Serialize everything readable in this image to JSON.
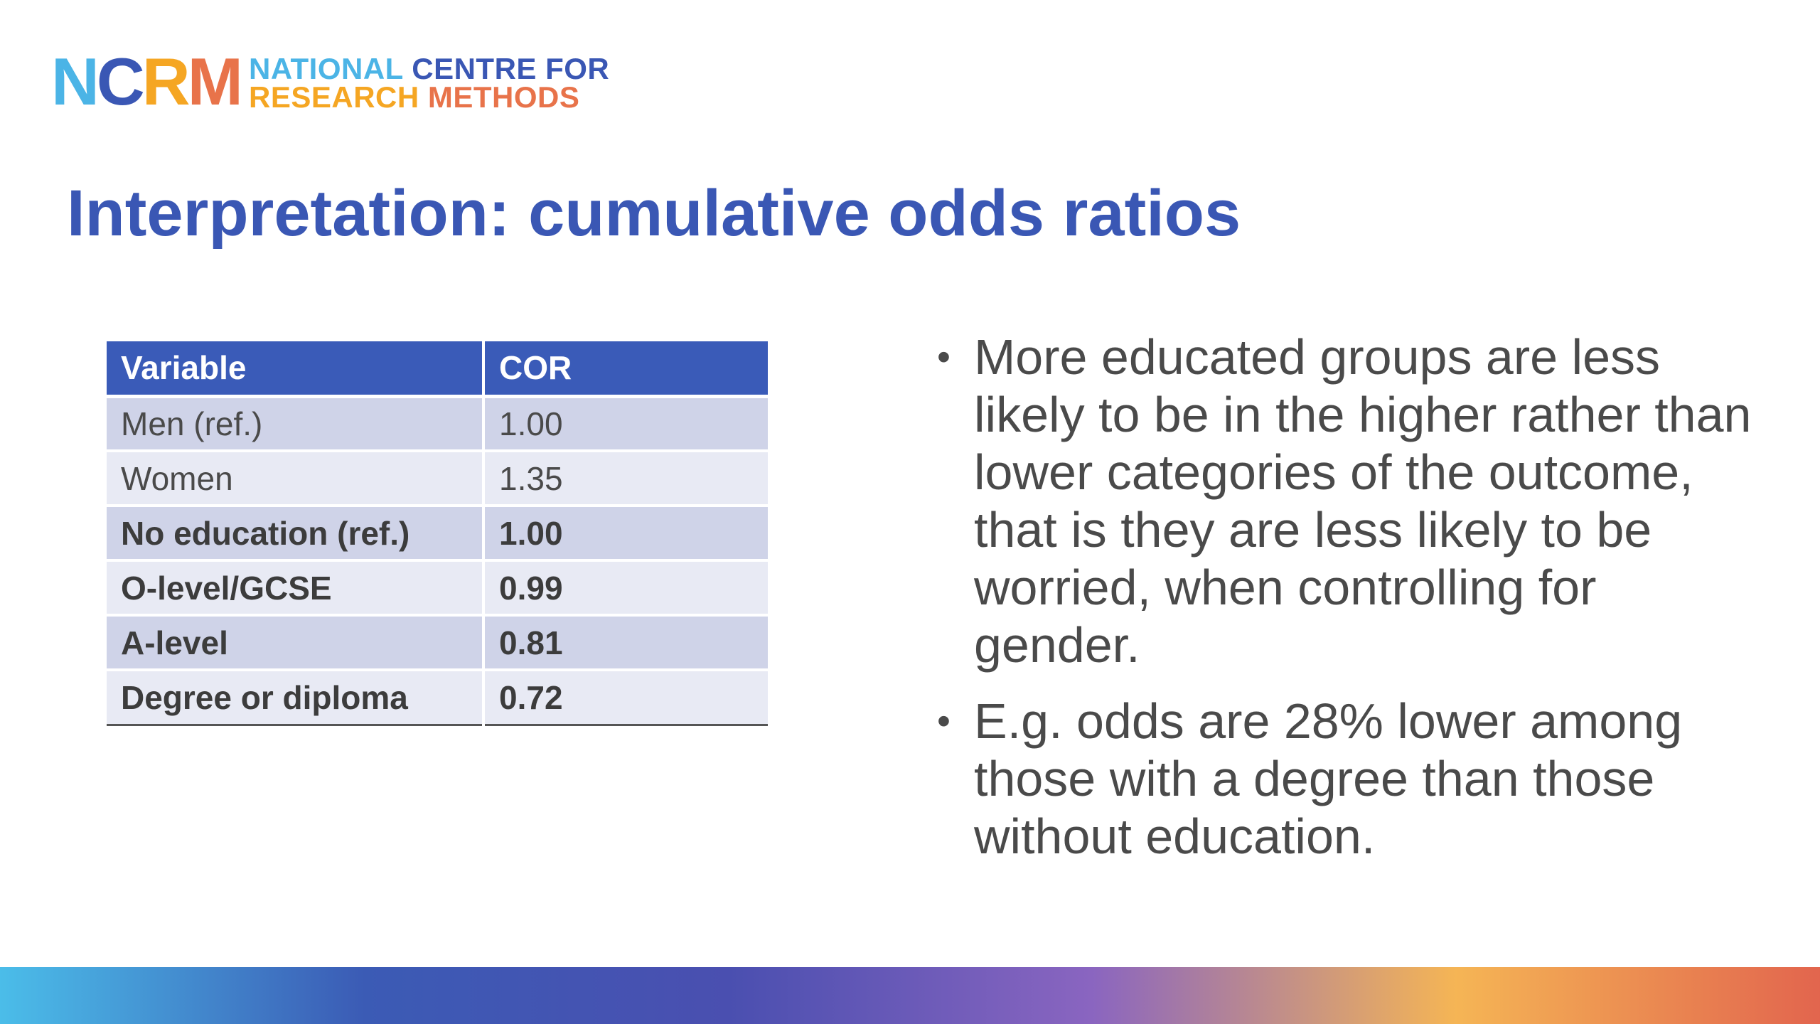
{
  "logo": {
    "mark_letters": [
      {
        "char": "N",
        "color": "#4bb4e6"
      },
      {
        "char": "C",
        "color": "#3a57b4"
      },
      {
        "char": "R",
        "color": "#f5a623"
      },
      {
        "char": "M",
        "color": "#e8734a"
      }
    ],
    "line1": [
      {
        "text": "NATIONAL ",
        "color": "#4bb4e6"
      },
      {
        "text": "CENTRE FOR",
        "color": "#3a57b4"
      }
    ],
    "line2": [
      {
        "text": "RESEARCH ",
        "color": "#f5a623"
      },
      {
        "text": "METHODS",
        "color": "#e8734a"
      }
    ]
  },
  "title": "Interpretation: cumulative odds ratios",
  "table": {
    "headers": [
      "Variable",
      "COR"
    ],
    "rows": [
      {
        "variable": "Men (ref.)",
        "cor": "1.00",
        "bold": false
      },
      {
        "variable": "Women",
        "cor": "1.35",
        "bold": false
      },
      {
        "variable": "No education (ref.)",
        "cor": "1.00",
        "bold": true
      },
      {
        "variable": "O-level/GCSE",
        "cor": "0.99",
        "bold": true
      },
      {
        "variable": "A-level",
        "cor": "0.81",
        "bold": true
      },
      {
        "variable": "Degree or diploma",
        "cor": "0.72",
        "bold": true
      }
    ]
  },
  "bullets": [
    "More educated groups are less likely to be in the higher rather than lower categories of the outcome, that is they are less likely to be worried, when controlling for gender.",
    "E.g. odds are 28% lower among those with a degree than those without education."
  ],
  "bullet_glyph": "•",
  "colors": {
    "title": "#3a57b4",
    "table_header": "#3a5bb8",
    "row_odd": "#cfd3e8",
    "row_even": "#e8eaf4",
    "body_text": "#4a4a4a",
    "bar_gradient": [
      "#4bbde9",
      "#3b5bb5",
      "#4a4fb0",
      "#8a65c0",
      "#f5b555",
      "#e2654e"
    ]
  }
}
